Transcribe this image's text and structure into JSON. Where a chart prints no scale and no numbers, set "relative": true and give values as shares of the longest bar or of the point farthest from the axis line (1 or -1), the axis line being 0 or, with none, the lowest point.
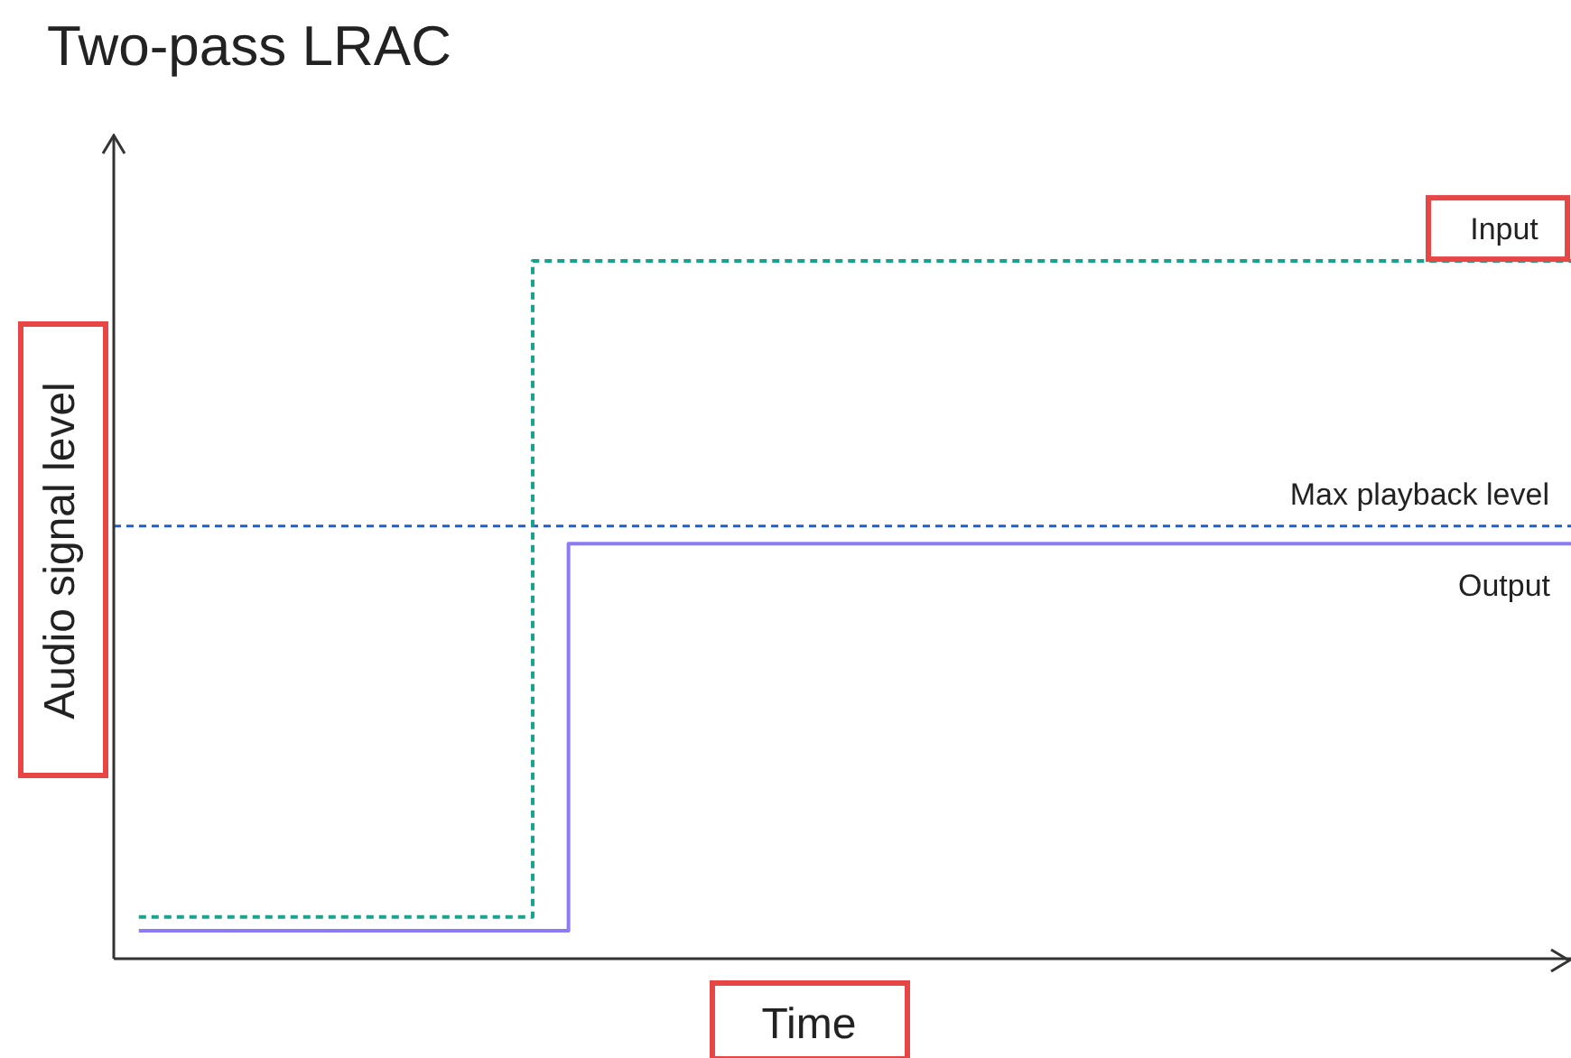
{
  "chart_data": {
    "type": "step",
    "title": "Two-pass LRAC",
    "xlabel": "Time",
    "ylabel": "Audio signal level",
    "relative": true,
    "categories": [
      null,
      null,
      null,
      null,
      null,
      null,
      null,
      null,
      null,
      null,
      null,
      null,
      null,
      null,
      null,
      null,
      null,
      null,
      null,
      null,
      null,
      null,
      null,
      null,
      null,
      null,
      null,
      null,
      null,
      null,
      null,
      null,
      null,
      null,
      null,
      null,
      null,
      null,
      null,
      null,
      null
    ],
    "series": [
      {
        "name": "Input",
        "color": "#1aa38a",
        "line_style": "dashed",
        "values": [
          0.06,
          0.06,
          0.06,
          0.06,
          0.06,
          0.06,
          0.06,
          0.06,
          0.06,
          0.06,
          0.06,
          1,
          1,
          1,
          1,
          1,
          1,
          1,
          1,
          1,
          1,
          1,
          1,
          1,
          1,
          1,
          1,
          1,
          1,
          1,
          1,
          1,
          1,
          1,
          1,
          1,
          1,
          1,
          1,
          1,
          1
        ]
      },
      {
        "name": "Output",
        "color": "#8b7cf6",
        "line_style": "solid",
        "values": [
          0.04,
          0.04,
          0.04,
          0.04,
          0.04,
          0.04,
          0.04,
          0.04,
          0.04,
          0.04,
          0.04,
          0.04,
          0.595,
          0.595,
          0.595,
          0.595,
          0.595,
          0.595,
          0.595,
          0.595,
          0.595,
          0.595,
          0.595,
          0.595,
          0.595,
          0.595,
          0.595,
          0.595,
          0.595,
          0.595,
          0.595,
          0.595,
          0.595,
          0.595,
          0.595,
          0.595,
          0.595,
          0.595,
          0.595,
          0.595,
          0.595
        ]
      }
    ],
    "ref_lines": [
      {
        "axis": "y",
        "value": 0.62,
        "label": "Max playback level",
        "color": "#1f5fd1",
        "line_style": "dashed"
      }
    ]
  }
}
